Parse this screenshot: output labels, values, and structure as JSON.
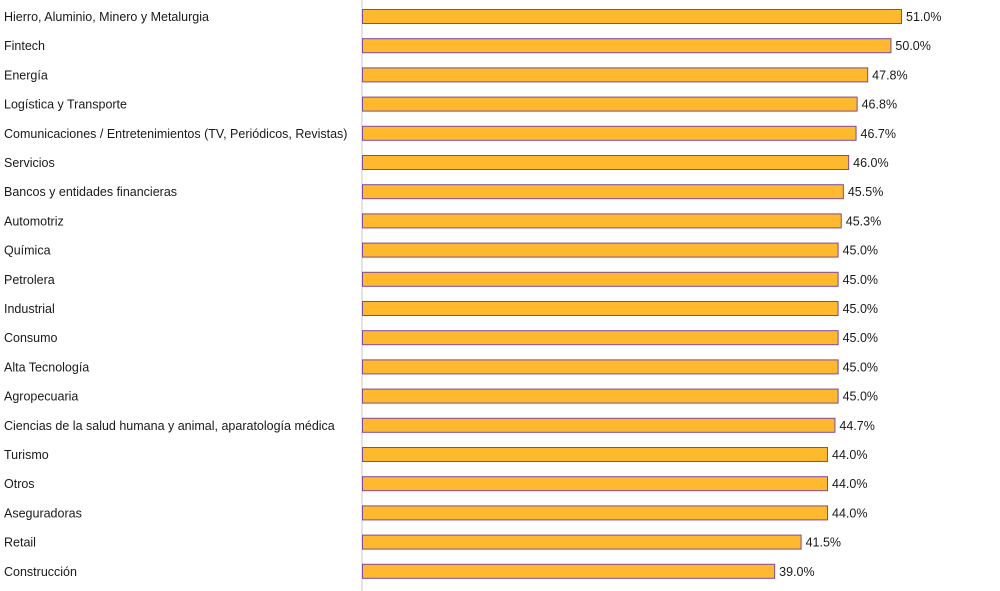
{
  "chart_data": {
    "type": "bar",
    "orientation": "horizontal",
    "title": "",
    "xlabel": "",
    "ylabel": "",
    "categories": [
      "Hierro, Aluminio, Minero y Metalurgia",
      "Fintech",
      "Energía",
      "Logística y Transporte",
      "Comunicaciones / Entretenimientos (TV, Periódicos, Revistas)",
      "Servicios",
      "Bancos y entidades financieras",
      "Automotriz",
      "Química",
      "Petrolera",
      "Industrial",
      "Consumo",
      "Alta Tecnología",
      "Agropecuaria",
      "Ciencias de la salud humana y animal, aparatología médica",
      "Turismo",
      "Otros",
      "Aseguradoras",
      "Retail",
      "Construcción"
    ],
    "values": [
      51.0,
      50.0,
      47.8,
      46.8,
      46.7,
      46.0,
      45.5,
      45.3,
      45.0,
      45.0,
      45.0,
      45.0,
      45.0,
      45.0,
      44.7,
      44.0,
      44.0,
      44.0,
      41.5,
      39.0
    ],
    "value_labels": [
      "51.0%",
      "50.0%",
      "47.8%",
      "46.8%",
      "46.7%",
      "46.0%",
      "45.5%",
      "45.3%",
      "45.0%",
      "45.0%",
      "45.0%",
      "45.0%",
      "45.0%",
      "45.0%",
      "44.7%",
      "44.0%",
      "44.0%",
      "44.0%",
      "41.5%",
      "39.0%"
    ],
    "xlim": [
      0,
      51.0
    ],
    "grid": false,
    "legend": "none",
    "colors": {
      "bar_fill": "#FFB92E",
      "bar_stroke": "#7E4A9C",
      "axis_line": "#C8C8C8",
      "text": "#1a1a1a"
    }
  }
}
